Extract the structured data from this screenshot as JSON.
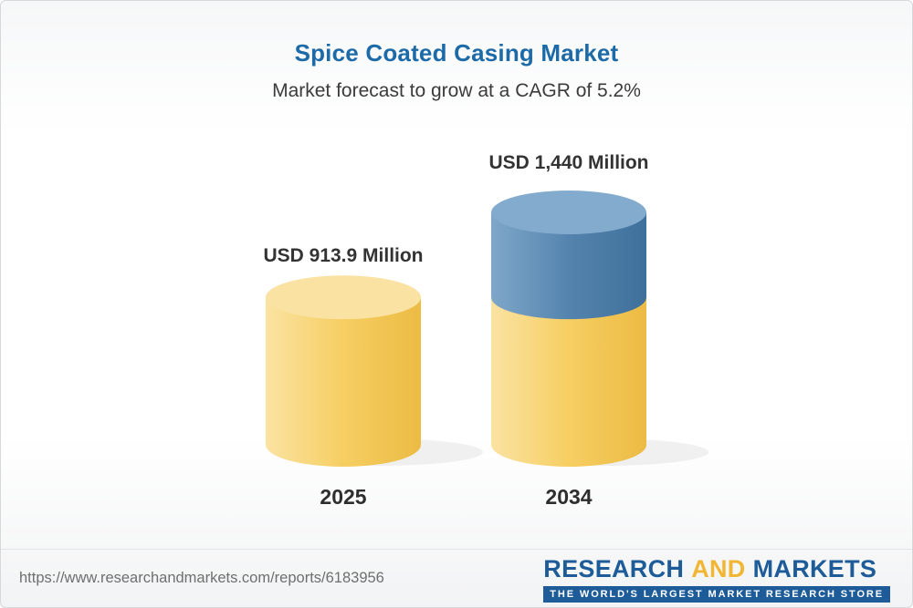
{
  "header": {
    "title": "Spice Coated Casing Market",
    "subtitle": "Market forecast to grow at a CAGR of 5.2%"
  },
  "chart_data": {
    "type": "bar",
    "title": "Spice Coated Casing Market",
    "subtitle": "Market forecast to grow at a CAGR of 5.2%",
    "cagr_percent": 5.2,
    "unit": "USD Million",
    "categories": [
      "2025",
      "2034"
    ],
    "values": [
      913.9,
      1440
    ],
    "value_labels": [
      "USD 913.9 Million",
      "USD 1,440 Million"
    ],
    "legend_position": "none",
    "grid": false,
    "ylim": [
      0,
      1440
    ],
    "colors": {
      "yellow_body": [
        "#fae3a2",
        "#f6ce62",
        "#ecbb44"
      ],
      "yellow_top": "#f9e2a2",
      "blue_body": [
        "#7fa7c9",
        "#5484ae",
        "#3f709b"
      ],
      "blue_top": "#83abcd",
      "shadow": "rgba(0,0,0,0.055)"
    }
  },
  "footer": {
    "url": "https://www.researchandmarkets.com/reports/6183956",
    "logo": {
      "word_research": "RESEARCH",
      "word_and": "AND",
      "word_markets": "MARKETS",
      "tagline": "THE WORLD'S LARGEST MARKET RESEARCH STORE"
    }
  }
}
